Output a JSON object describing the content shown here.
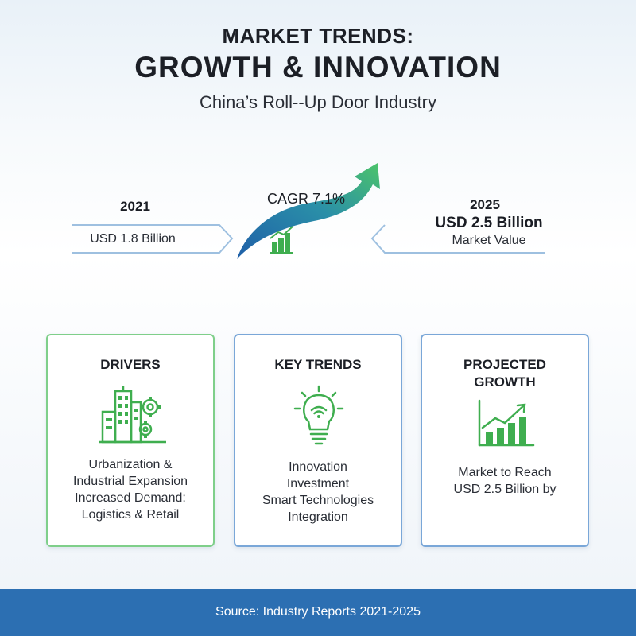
{
  "header": {
    "title_line1": "MARKET TRENDS:",
    "title_line2": "GROWTH & INNOVATION",
    "subtitle": "China’s Roll--Up Door Industry"
  },
  "timeline": {
    "start": {
      "year": "2021",
      "value": "USD 1.8 Billion"
    },
    "growth": {
      "label": "CAGR 7.1%",
      "icon": "bar-chart-icon"
    },
    "end": {
      "year": "2025",
      "value": "USD 2.5 Billion",
      "label": "Market Value"
    },
    "arrow_colors": {
      "start": "#1f5fa8",
      "end": "#4cc46a"
    }
  },
  "cards": [
    {
      "title": "DRIVERS",
      "icon": "city-gears-icon",
      "lines": [
        "Urbanization &",
        "Industrial Expansion",
        "Increased Demand:",
        "Logistics & Retail"
      ],
      "border_color": "#7fcf8a"
    },
    {
      "title": "KEY TRENDS",
      "icon": "lightbulb-wifi-icon",
      "lines": [
        "Innovation",
        "Investment",
        "Smart Technologies",
        "Integration"
      ],
      "border_color": "#7aa7d8"
    },
    {
      "title_lines": [
        "PROJECTED",
        "GROWTH"
      ],
      "icon": "growth-chart-icon",
      "lines": [
        "Market to Reach",
        "USD 2.5 Billion by"
      ],
      "border_color": "#7aa7d8"
    }
  ],
  "footer": {
    "source": "Source: Industry Reports 2021-2025",
    "background": "#2c6fb2"
  },
  "colors": {
    "green_accent": "#3fae4f",
    "blue_accent": "#2c6fb2"
  }
}
